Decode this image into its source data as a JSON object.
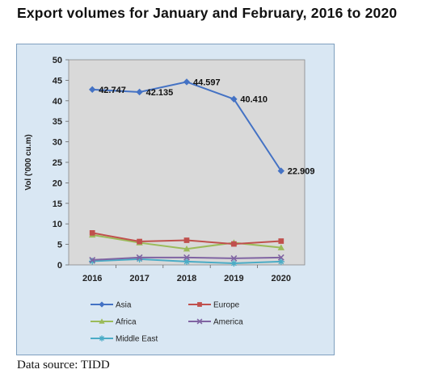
{
  "title": "Export volumes for January and February, 2016 to 2020",
  "source": "Data source: TIDD",
  "colors": {
    "outer_bg": "#d9e7f3",
    "outer_border": "#7fa0bf",
    "plot_bg": "#d9d9d9",
    "Asia": "#4472c4",
    "Europe": "#c0504d",
    "Africa": "#9bbb59",
    "America": "#8064a2",
    "Middle East": "#4bacc6"
  },
  "chart_data": {
    "type": "line",
    "title": "Export volumes for January and February, 2016 to 2020",
    "xlabel": "",
    "ylabel": "Vol ('000 cu.m)",
    "categories": [
      "2016",
      "2017",
      "2018",
      "2019",
      "2020"
    ],
    "ylim": [
      0,
      50
    ],
    "yticks": [
      0,
      5,
      10,
      15,
      20,
      25,
      30,
      35,
      40,
      45,
      50
    ],
    "grid": false,
    "legend_position": "bottom",
    "series": [
      {
        "name": "Asia",
        "marker": "diamond",
        "values": [
          42.747,
          42.135,
          44.597,
          40.41,
          22.909
        ],
        "labels": [
          "42.747",
          "42.135",
          "44.597",
          "40.410",
          "22.909"
        ]
      },
      {
        "name": "Europe",
        "marker": "square",
        "values": [
          7.8,
          5.7,
          6.0,
          5.1,
          5.8
        ]
      },
      {
        "name": "Africa",
        "marker": "triangle",
        "values": [
          7.3,
          5.4,
          3.9,
          5.4,
          4.2
        ]
      },
      {
        "name": "America",
        "marker": "x",
        "values": [
          1.2,
          1.8,
          1.8,
          1.6,
          1.8
        ]
      },
      {
        "name": "Middle East",
        "marker": "star",
        "values": [
          0.9,
          1.4,
          0.8,
          0.4,
          0.8
        ]
      }
    ]
  }
}
